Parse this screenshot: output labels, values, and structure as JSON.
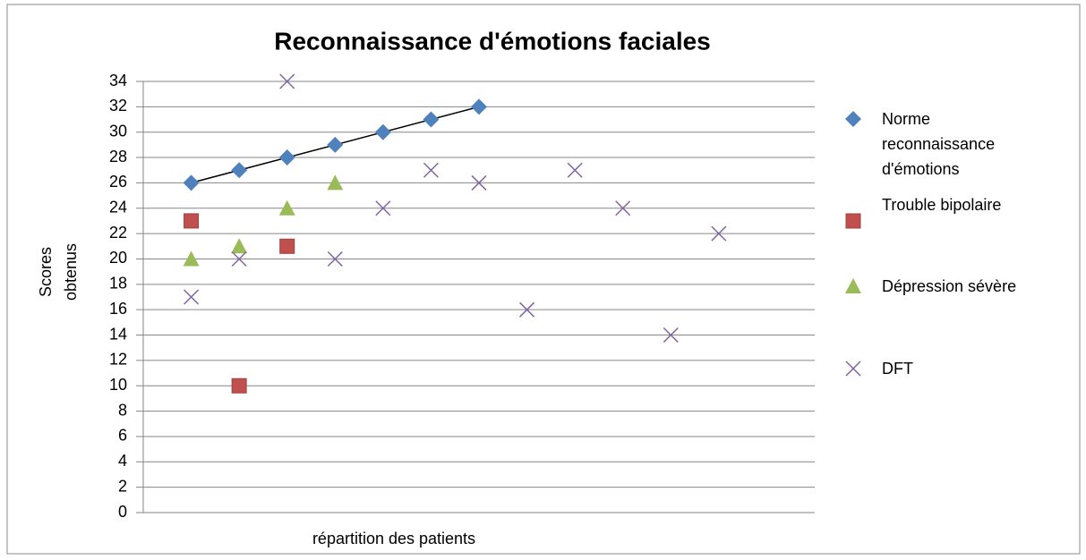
{
  "chart_data": {
    "type": "scatter",
    "title": "Reconnaissance d'émotions faciales",
    "ylabel": "Scores obtenus",
    "xlabel": "répartition des patients",
    "xlim": [
      0,
      14
    ],
    "ylim": [
      0,
      34
    ],
    "yticks": [
      0,
      2,
      4,
      6,
      8,
      10,
      12,
      14,
      16,
      18,
      20,
      22,
      24,
      26,
      28,
      30,
      32,
      34
    ],
    "grid": true,
    "legend": "right",
    "series": [
      {
        "name": "Norme reconnaissance d'émotions",
        "color": "#4f81bd",
        "marker": "diamond",
        "trendline": true,
        "x": [
          1,
          2,
          3,
          4,
          5,
          6,
          7
        ],
        "values": [
          26,
          27,
          28,
          29,
          30,
          31,
          32
        ]
      },
      {
        "name": "Trouble bipolaire",
        "color": "#c0504d",
        "marker": "square",
        "x": [
          1,
          2,
          3
        ],
        "values": [
          23,
          10,
          21
        ]
      },
      {
        "name": "Dépression sévère",
        "color": "#9bbb59",
        "marker": "triangle",
        "x": [
          1,
          2,
          3,
          4
        ],
        "values": [
          20,
          21,
          24,
          26
        ]
      },
      {
        "name": "DFT",
        "color": "#8064a2",
        "marker": "x",
        "x": [
          1,
          2,
          3,
          4,
          5,
          6,
          7,
          8,
          9,
          10,
          11,
          12
        ],
        "values": [
          17,
          20,
          34,
          20,
          24,
          27,
          26,
          16,
          27,
          24,
          14,
          22
        ]
      }
    ]
  }
}
